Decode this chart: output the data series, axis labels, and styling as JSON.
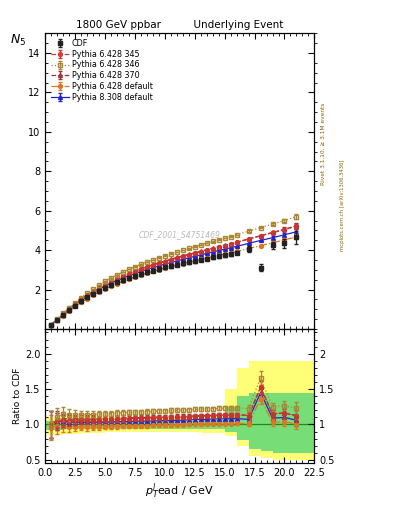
{
  "title_left": "1800 GeV ppbar",
  "title_right": "Underlying Event",
  "ylabel_main": "$N_5$",
  "ylabel_ratio": "Ratio to CDF",
  "xlabel": "$p_T^{l}$ead / GeV",
  "watermark": "CDF_2001_S4751469",
  "rivet_label": "Rivet 3.1.10, ≥ 3.1M events",
  "arxiv_label": "mcplots.cern.ch [arXiv:1306.3436]",
  "xlim": [
    0,
    22.5
  ],
  "ylim_main": [
    0,
    15
  ],
  "ylim_ratio": [
    0.45,
    2.35
  ],
  "yticks_main": [
    2,
    4,
    6,
    8,
    10,
    12,
    14
  ],
  "yticks_ratio": [
    0.5,
    1.0,
    1.5,
    2.0
  ],
  "pt_lead": [
    0.5,
    1.0,
    1.5,
    2.0,
    2.5,
    3.0,
    3.5,
    4.0,
    4.5,
    5.0,
    5.5,
    6.0,
    6.5,
    7.0,
    7.5,
    8.0,
    8.5,
    9.0,
    9.5,
    10.0,
    10.5,
    11.0,
    11.5,
    12.0,
    12.5,
    13.0,
    13.5,
    14.0,
    14.5,
    15.0,
    15.5,
    16.0,
    17.0,
    18.0,
    19.0,
    20.0,
    21.0
  ],
  "cdf_y": [
    0.22,
    0.45,
    0.7,
    0.95,
    1.18,
    1.4,
    1.6,
    1.78,
    1.95,
    2.1,
    2.24,
    2.36,
    2.48,
    2.59,
    2.69,
    2.79,
    2.88,
    2.96,
    3.04,
    3.12,
    3.19,
    3.26,
    3.33,
    3.39,
    3.45,
    3.51,
    3.57,
    3.63,
    3.69,
    3.75,
    3.81,
    3.87,
    4.05,
    3.1,
    4.25,
    4.35,
    4.65
  ],
  "cdf_yerr": [
    0.04,
    0.05,
    0.06,
    0.07,
    0.07,
    0.07,
    0.08,
    0.08,
    0.08,
    0.08,
    0.08,
    0.08,
    0.08,
    0.08,
    0.08,
    0.08,
    0.08,
    0.08,
    0.08,
    0.08,
    0.08,
    0.08,
    0.08,
    0.08,
    0.08,
    0.08,
    0.08,
    0.09,
    0.09,
    0.09,
    0.09,
    0.09,
    0.14,
    0.18,
    0.18,
    0.22,
    0.32
  ],
  "p345_y": [
    0.22,
    0.47,
    0.74,
    1.0,
    1.25,
    1.48,
    1.7,
    1.9,
    2.08,
    2.25,
    2.4,
    2.54,
    2.67,
    2.8,
    2.92,
    3.03,
    3.13,
    3.23,
    3.33,
    3.42,
    3.51,
    3.59,
    3.68,
    3.76,
    3.84,
    3.92,
    4.0,
    4.08,
    4.16,
    4.23,
    4.31,
    4.39,
    4.56,
    4.72,
    4.88,
    5.04,
    5.22
  ],
  "p345_yerr": [
    0.01,
    0.01,
    0.01,
    0.01,
    0.01,
    0.01,
    0.01,
    0.01,
    0.01,
    0.01,
    0.01,
    0.01,
    0.01,
    0.01,
    0.01,
    0.01,
    0.01,
    0.01,
    0.01,
    0.01,
    0.01,
    0.01,
    0.01,
    0.01,
    0.01,
    0.01,
    0.01,
    0.01,
    0.01,
    0.01,
    0.01,
    0.01,
    0.04,
    0.04,
    0.07,
    0.09,
    0.13
  ],
  "p346_y": [
    0.22,
    0.5,
    0.8,
    1.08,
    1.34,
    1.59,
    1.82,
    2.03,
    2.23,
    2.41,
    2.58,
    2.74,
    2.89,
    3.03,
    3.16,
    3.28,
    3.4,
    3.51,
    3.62,
    3.72,
    3.82,
    3.91,
    4.0,
    4.09,
    4.18,
    4.27,
    4.36,
    4.44,
    4.53,
    4.61,
    4.69,
    4.78,
    4.96,
    5.14,
    5.32,
    5.5,
    5.7
  ],
  "p346_yerr": [
    0.01,
    0.01,
    0.01,
    0.01,
    0.01,
    0.01,
    0.01,
    0.01,
    0.01,
    0.01,
    0.01,
    0.01,
    0.01,
    0.01,
    0.01,
    0.01,
    0.01,
    0.01,
    0.01,
    0.01,
    0.01,
    0.01,
    0.01,
    0.01,
    0.01,
    0.01,
    0.01,
    0.01,
    0.01,
    0.01,
    0.01,
    0.01,
    0.04,
    0.04,
    0.07,
    0.09,
    0.13
  ],
  "p370_y": [
    0.22,
    0.48,
    0.76,
    1.02,
    1.27,
    1.51,
    1.72,
    1.92,
    2.1,
    2.27,
    2.43,
    2.57,
    2.71,
    2.84,
    2.95,
    3.06,
    3.17,
    3.27,
    3.36,
    3.45,
    3.54,
    3.63,
    3.71,
    3.79,
    3.87,
    3.95,
    4.03,
    4.1,
    4.18,
    4.25,
    4.32,
    4.4,
    4.57,
    4.73,
    4.9,
    5.06,
    5.23
  ],
  "p370_yerr": [
    0.01,
    0.01,
    0.01,
    0.01,
    0.01,
    0.01,
    0.01,
    0.01,
    0.01,
    0.01,
    0.01,
    0.01,
    0.01,
    0.01,
    0.01,
    0.01,
    0.01,
    0.01,
    0.01,
    0.01,
    0.01,
    0.01,
    0.01,
    0.01,
    0.01,
    0.01,
    0.01,
    0.01,
    0.01,
    0.01,
    0.01,
    0.01,
    0.04,
    0.04,
    0.07,
    0.09,
    0.13
  ],
  "pdef_y": [
    0.21,
    0.44,
    0.68,
    0.92,
    1.14,
    1.35,
    1.54,
    1.72,
    1.88,
    2.03,
    2.17,
    2.3,
    2.42,
    2.53,
    2.64,
    2.74,
    2.83,
    2.92,
    3.01,
    3.09,
    3.17,
    3.25,
    3.32,
    3.39,
    3.46,
    3.53,
    3.6,
    3.67,
    3.73,
    3.8,
    3.86,
    3.93,
    4.08,
    4.23,
    4.37,
    4.52,
    4.67
  ],
  "pdef_yerr": [
    0.01,
    0.01,
    0.01,
    0.01,
    0.01,
    0.01,
    0.01,
    0.01,
    0.01,
    0.01,
    0.01,
    0.01,
    0.01,
    0.01,
    0.01,
    0.01,
    0.01,
    0.01,
    0.01,
    0.01,
    0.01,
    0.01,
    0.01,
    0.01,
    0.01,
    0.01,
    0.01,
    0.01,
    0.01,
    0.01,
    0.01,
    0.01,
    0.04,
    0.04,
    0.07,
    0.09,
    0.13
  ],
  "p8def_y": [
    0.22,
    0.47,
    0.73,
    0.98,
    1.22,
    1.44,
    1.65,
    1.84,
    2.01,
    2.17,
    2.32,
    2.45,
    2.58,
    2.7,
    2.81,
    2.92,
    3.02,
    3.11,
    3.2,
    3.29,
    3.37,
    3.45,
    3.53,
    3.61,
    3.68,
    3.76,
    3.83,
    3.91,
    3.98,
    4.05,
    4.12,
    4.19,
    4.34,
    4.49,
    4.63,
    4.78,
    4.93
  ],
  "p8def_yerr": [
    0.01,
    0.01,
    0.01,
    0.01,
    0.01,
    0.01,
    0.01,
    0.01,
    0.01,
    0.01,
    0.01,
    0.01,
    0.01,
    0.01,
    0.01,
    0.01,
    0.01,
    0.01,
    0.01,
    0.01,
    0.01,
    0.01,
    0.01,
    0.01,
    0.01,
    0.01,
    0.01,
    0.01,
    0.01,
    0.01,
    0.01,
    0.01,
    0.04,
    0.04,
    0.07,
    0.09,
    0.13
  ],
  "cdf_color": "#222222",
  "p345_color": "#cc3333",
  "p346_color": "#aa8833",
  "p370_color": "#993333",
  "pdef_color": "#dd7722",
  "p8def_color": "#2222cc",
  "band_yellow_bins": [
    0.0,
    1.5,
    3.0,
    5.0,
    7.0,
    9.0,
    11.0,
    13.0,
    15.0,
    16.0,
    17.0,
    18.0,
    19.0,
    20.0,
    22.5
  ],
  "band_yellow_lo": [
    0.85,
    0.87,
    0.88,
    0.89,
    0.89,
    0.89,
    0.89,
    0.88,
    0.84,
    0.7,
    0.55,
    0.52,
    0.5,
    0.5
  ],
  "band_yellow_hi": [
    1.1,
    1.1,
    1.1,
    1.1,
    1.1,
    1.1,
    1.1,
    1.12,
    1.5,
    1.8,
    1.9,
    1.9,
    1.9,
    1.9
  ],
  "band_green_bins": [
    0.0,
    1.5,
    3.0,
    5.0,
    7.0,
    9.0,
    11.0,
    13.0,
    15.0,
    16.0,
    17.0,
    18.0,
    19.0,
    20.0,
    22.5
  ],
  "band_green_lo": [
    0.92,
    0.93,
    0.93,
    0.94,
    0.94,
    0.94,
    0.94,
    0.93,
    0.89,
    0.78,
    0.65,
    0.62,
    0.6,
    0.6
  ],
  "band_green_hi": [
    1.05,
    1.05,
    1.05,
    1.05,
    1.05,
    1.05,
    1.05,
    1.06,
    1.25,
    1.4,
    1.45,
    1.45,
    1.45,
    1.45
  ]
}
